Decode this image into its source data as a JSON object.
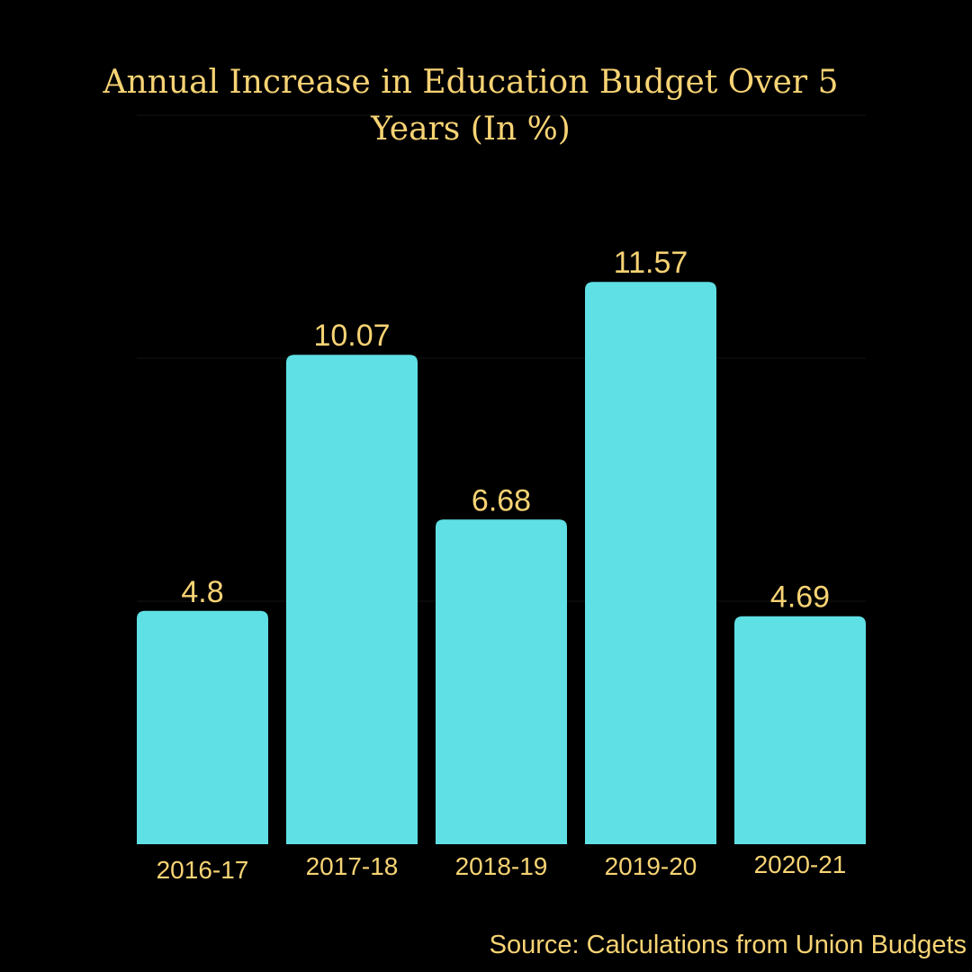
{
  "chart_data": {
    "type": "bar",
    "title_lines": [
      "Annual Increase in Education Budget Over 5",
      "Years  (In %)"
    ],
    "categories": [
      "2016-17",
      "2017-18",
      "2018-19",
      "2019-20",
      "2020-21"
    ],
    "values": [
      4.8,
      10.07,
      6.68,
      11.57,
      4.69
    ],
    "data_labels": [
      "4.8",
      "10.07",
      "6.68",
      "11.57",
      "4.69"
    ],
    "xlabel": "",
    "ylabel": "",
    "ylim": [
      0,
      15
    ],
    "grid": true,
    "legend": "none",
    "colors": {
      "background": "#000000",
      "bar": "#5fe0e4",
      "text": "#f7d374",
      "grid": "#141414"
    }
  },
  "footer": {
    "source": "Source: Calculations from Union Budgets"
  }
}
